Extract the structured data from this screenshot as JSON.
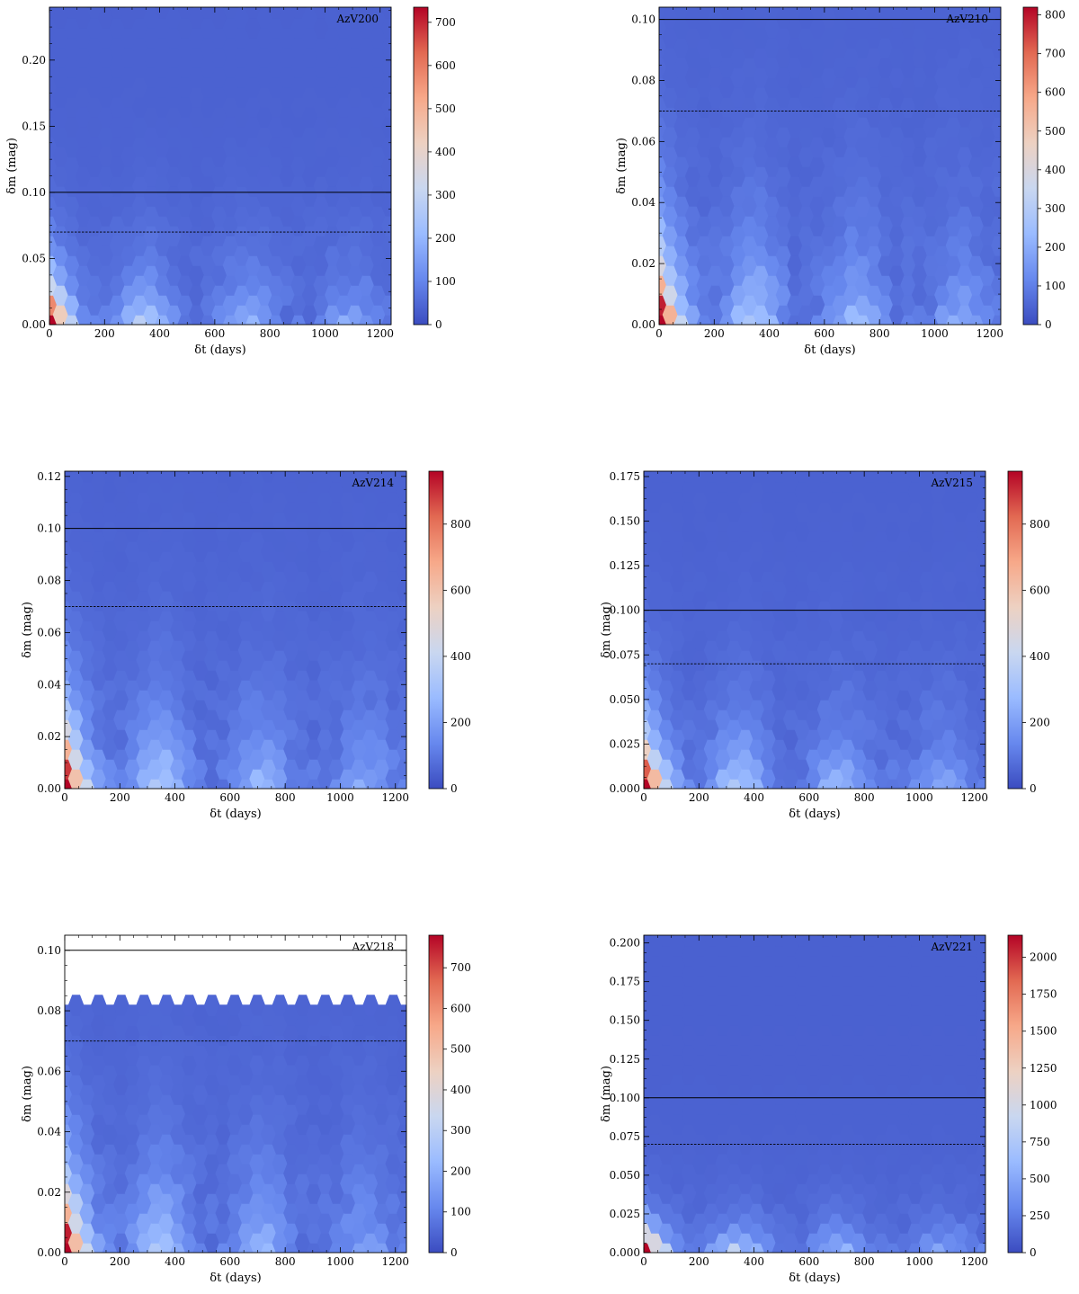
{
  "colormap": {
    "name": "coolwarm",
    "stops": [
      "#3b4cc0",
      "#6788ee",
      "#9abbff",
      "#c9d7f0",
      "#edd1c2",
      "#f7a889",
      "#e26952",
      "#b40426"
    ]
  },
  "chart_data": [
    {
      "type": "heatmap",
      "subtype": "hexbin",
      "label": "AzV200",
      "xlabel": "δt (days)",
      "ylabel": "δm (mag)",
      "xlim": [
        0,
        1240
      ],
      "ylim": [
        0,
        0.24
      ],
      "xticks": [
        0,
        200,
        400,
        600,
        800,
        1000,
        1200
      ],
      "xticklabels": [
        "0",
        "200",
        "400",
        "600",
        "800",
        "1000",
        "1200"
      ],
      "yticks": [
        0,
        0.05,
        0.1,
        0.15,
        0.2
      ],
      "yticklabels": [
        "0.00",
        "0.05",
        "0.10",
        "0.15",
        "0.20"
      ],
      "hlines": [
        {
          "y": 0.1,
          "style": "solid"
        },
        {
          "y": 0.07,
          "style": "dashed"
        }
      ],
      "ymax_data": 0.24,
      "decay": 0.028,
      "colorbar": {
        "min": 0,
        "max": 735,
        "ticks": [
          0,
          100,
          200,
          300,
          400,
          500,
          600,
          700
        ],
        "ticklabels": [
          "0",
          "100",
          "200",
          "300",
          "400",
          "500",
          "600",
          "700"
        ]
      }
    },
    {
      "type": "heatmap",
      "subtype": "hexbin",
      "label": "AzV210",
      "xlabel": "δt (days)",
      "ylabel": "δm (mag)",
      "xlim": [
        0,
        1240
      ],
      "ylim": [
        0,
        0.104
      ],
      "xticks": [
        0,
        200,
        400,
        600,
        800,
        1000,
        1200
      ],
      "xticklabels": [
        "0",
        "200",
        "400",
        "600",
        "800",
        "1000",
        "1200"
      ],
      "yticks": [
        0,
        0.02,
        0.04,
        0.06,
        0.08,
        0.1
      ],
      "yticklabels": [
        "0.00",
        "0.02",
        "0.04",
        "0.06",
        "0.08",
        "0.10"
      ],
      "hlines": [
        {
          "y": 0.1,
          "style": "solid"
        },
        {
          "y": 0.07,
          "style": "dashed"
        }
      ],
      "ymax_data": 0.104,
      "decay": 0.02,
      "colorbar": {
        "min": 0,
        "max": 820,
        "ticks": [
          0,
          100,
          200,
          300,
          400,
          500,
          600,
          700,
          800
        ],
        "ticklabels": [
          "0",
          "100",
          "200",
          "300",
          "400",
          "500",
          "600",
          "700",
          "800"
        ]
      }
    },
    {
      "type": "heatmap",
      "subtype": "hexbin",
      "label": "AzV214",
      "xlabel": "δt (days)",
      "ylabel": "δm (mag)",
      "xlim": [
        0,
        1240
      ],
      "ylim": [
        0,
        0.122
      ],
      "xticks": [
        0,
        200,
        400,
        600,
        800,
        1000,
        1200
      ],
      "xticklabels": [
        "0",
        "200",
        "400",
        "600",
        "800",
        "1000",
        "1200"
      ],
      "yticks": [
        0,
        0.02,
        0.04,
        0.06,
        0.08,
        0.1,
        0.12
      ],
      "yticklabels": [
        "0.00",
        "0.02",
        "0.04",
        "0.06",
        "0.08",
        "0.10",
        "0.12"
      ],
      "hlines": [
        {
          "y": 0.1,
          "style": "solid"
        },
        {
          "y": 0.07,
          "style": "dashed"
        }
      ],
      "ymax_data": 0.122,
      "decay": 0.022,
      "colorbar": {
        "min": 0,
        "max": 960,
        "ticks": [
          0,
          200,
          400,
          600,
          800
        ],
        "ticklabels": [
          "0",
          "200",
          "400",
          "600",
          "800"
        ]
      }
    },
    {
      "type": "heatmap",
      "subtype": "hexbin",
      "label": "AzV215",
      "xlabel": "δt (days)",
      "ylabel": "δm (mag)",
      "xlim": [
        0,
        1240
      ],
      "ylim": [
        0,
        0.178
      ],
      "xticks": [
        0,
        200,
        400,
        600,
        800,
        1000,
        1200
      ],
      "xticklabels": [
        "0",
        "200",
        "400",
        "600",
        "800",
        "1000",
        "1200"
      ],
      "yticks": [
        0,
        0.025,
        0.05,
        0.075,
        0.1,
        0.125,
        0.15,
        0.175
      ],
      "yticklabels": [
        "0.000",
        "0.025",
        "0.050",
        "0.075",
        "0.100",
        "0.125",
        "0.150",
        "0.175"
      ],
      "hlines": [
        {
          "y": 0.1,
          "style": "solid"
        },
        {
          "y": 0.07,
          "style": "dashed"
        }
      ],
      "ymax_data": 0.178,
      "decay": 0.026,
      "colorbar": {
        "min": 0,
        "max": 960,
        "ticks": [
          0,
          200,
          400,
          600,
          800
        ],
        "ticklabels": [
          "0",
          "200",
          "400",
          "600",
          "800"
        ]
      }
    },
    {
      "type": "heatmap",
      "subtype": "hexbin",
      "label": "AzV218",
      "xlabel": "δt (days)",
      "ylabel": "δm (mag)",
      "xlim": [
        0,
        1240
      ],
      "ylim": [
        0,
        0.105
      ],
      "xticks": [
        0,
        200,
        400,
        600,
        800,
        1000,
        1200
      ],
      "xticklabels": [
        "0",
        "200",
        "400",
        "600",
        "800",
        "1000",
        "1200"
      ],
      "yticks": [
        0,
        0.02,
        0.04,
        0.06,
        0.08,
        0.1
      ],
      "yticklabels": [
        "0.00",
        "0.02",
        "0.04",
        "0.06",
        "0.08",
        "0.10"
      ],
      "hlines": [
        {
          "y": 0.1,
          "style": "solid"
        },
        {
          "y": 0.07,
          "style": "dashed"
        }
      ],
      "ymax_data": 0.0815,
      "decay": 0.02,
      "colorbar": {
        "min": 0,
        "max": 780,
        "ticks": [
          0,
          100,
          200,
          300,
          400,
          500,
          600,
          700
        ],
        "ticklabels": [
          "0",
          "100",
          "200",
          "300",
          "400",
          "500",
          "600",
          "700"
        ]
      }
    },
    {
      "type": "heatmap",
      "subtype": "hexbin",
      "label": "AzV221",
      "xlabel": "δt (days)",
      "ylabel": "δm (mag)",
      "xlim": [
        0,
        1240
      ],
      "ylim": [
        0,
        0.205
      ],
      "xticks": [
        0,
        200,
        400,
        600,
        800,
        1000,
        1200
      ],
      "xticklabels": [
        "0",
        "200",
        "400",
        "600",
        "800",
        "1000",
        "1200"
      ],
      "yticks": [
        0,
        0.025,
        0.05,
        0.075,
        0.1,
        0.125,
        0.15,
        0.175,
        0.2
      ],
      "yticklabels": [
        "0.000",
        "0.025",
        "0.050",
        "0.075",
        "0.100",
        "0.125",
        "0.150",
        "0.175",
        "0.200"
      ],
      "hlines": [
        {
          "y": 0.1,
          "style": "solid"
        },
        {
          "y": 0.07,
          "style": "dashed"
        }
      ],
      "ymax_data": 0.205,
      "decay": 0.013,
      "colorbar": {
        "min": 0,
        "max": 2150,
        "ticks": [
          0,
          250,
          500,
          750,
          1000,
          1250,
          1500,
          1750,
          2000
        ],
        "ticklabels": [
          "0",
          "250",
          "500",
          "750",
          "1000",
          "1250",
          "1500",
          "1750",
          "2000"
        ]
      }
    }
  ]
}
